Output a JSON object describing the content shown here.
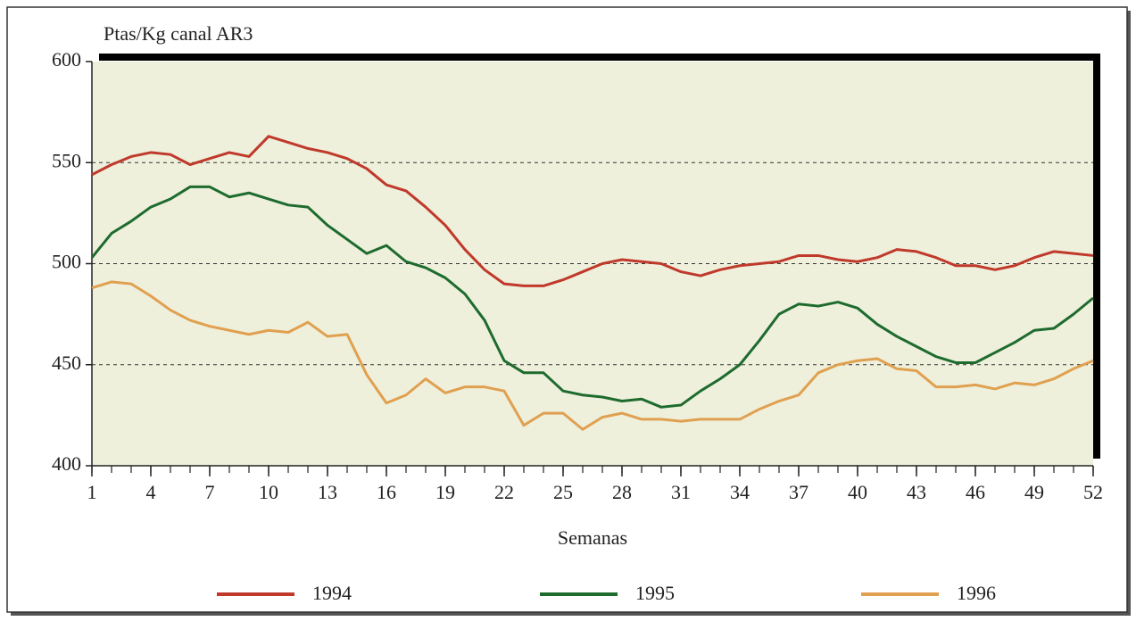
{
  "chart_data": {
    "type": "line",
    "y_label": "Ptas/Kg canal AR3",
    "x_label": "Semanas",
    "x": [
      1,
      2,
      3,
      4,
      5,
      6,
      7,
      8,
      9,
      10,
      11,
      12,
      13,
      14,
      15,
      16,
      17,
      18,
      19,
      20,
      21,
      22,
      23,
      24,
      25,
      26,
      27,
      28,
      29,
      30,
      31,
      32,
      33,
      34,
      35,
      36,
      37,
      38,
      39,
      40,
      41,
      42,
      43,
      44,
      45,
      46,
      47,
      48,
      49,
      50,
      51,
      52
    ],
    "xlim": [
      1,
      52
    ],
    "xticks": [
      1,
      4,
      7,
      10,
      13,
      16,
      19,
      22,
      25,
      28,
      31,
      34,
      37,
      40,
      43,
      46,
      49,
      52
    ],
    "ylim": [
      400,
      600
    ],
    "yticks": [
      400,
      450,
      500,
      550,
      600
    ],
    "grid": true,
    "legend": "bottom",
    "series": [
      {
        "name": "1994",
        "color": "#c0392b",
        "values": [
          544,
          549,
          553,
          555,
          554,
          549,
          552,
          555,
          553,
          563,
          560,
          557,
          555,
          552,
          547,
          539,
          536,
          528,
          519,
          507,
          497,
          490,
          489,
          489,
          492,
          496,
          500,
          502,
          501,
          500,
          496,
          494,
          497,
          499,
          500,
          501,
          504,
          504,
          502,
          501,
          503,
          507,
          506,
          503,
          499,
          499,
          497,
          499,
          503,
          506,
          505,
          504
        ]
      },
      {
        "name": "1995",
        "color": "#1e6b2e",
        "values": [
          503,
          515,
          521,
          528,
          532,
          538,
          538,
          533,
          535,
          532,
          529,
          528,
          519,
          512,
          505,
          509,
          501,
          498,
          493,
          485,
          472,
          452,
          446,
          446,
          437,
          435,
          434,
          432,
          433,
          429,
          430,
          437,
          443,
          450,
          462,
          475,
          480,
          479,
          481,
          478,
          470,
          464,
          459,
          454,
          451,
          451,
          456,
          461,
          467,
          468,
          475,
          483
        ]
      },
      {
        "name": "1996",
        "color": "#e0a050",
        "values": [
          488,
          491,
          490,
          484,
          477,
          472,
          469,
          467,
          465,
          467,
          466,
          471,
          464,
          465,
          445,
          431,
          435,
          443,
          436,
          439,
          439,
          437,
          420,
          426,
          426,
          418,
          424,
          426,
          423,
          423,
          422,
          423,
          423,
          423,
          428,
          432,
          435,
          446,
          450,
          452,
          453,
          448,
          447,
          439,
          439,
          440,
          438,
          441,
          440,
          443,
          448,
          452
        ]
      }
    ]
  }
}
